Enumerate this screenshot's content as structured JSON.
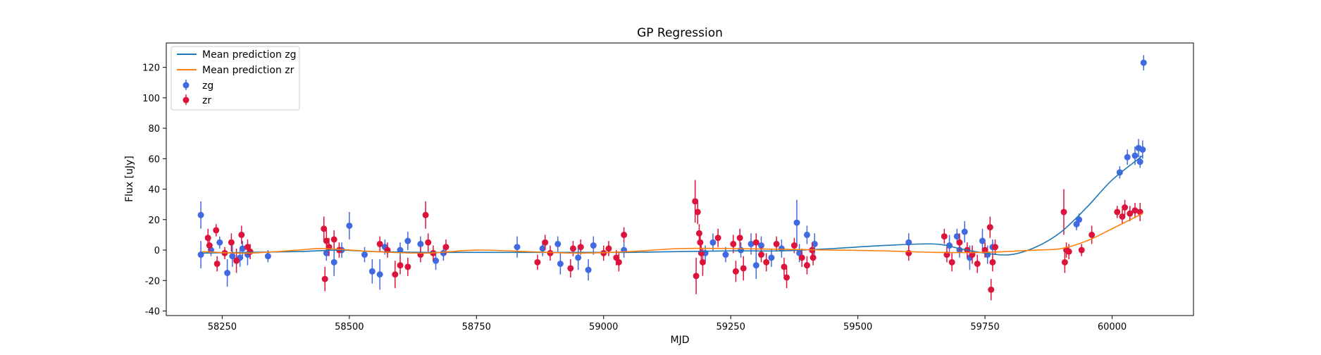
{
  "chart_data": {
    "type": "scatter",
    "title": "GP Regression",
    "xlabel": "MJD",
    "ylabel": "Flux [uJy]",
    "xlim": [
      58140,
      60160
    ],
    "ylim": [
      -43,
      136
    ],
    "xticks": [
      58250,
      58500,
      58750,
      59000,
      59250,
      59500,
      59750,
      60000
    ],
    "yticks": [
      -40,
      -20,
      0,
      20,
      40,
      60,
      80,
      100,
      120
    ],
    "grid": false,
    "legend_position": "top-left",
    "colors": {
      "zg": "#4169e1",
      "zr": "#dc143c",
      "mean_zg": "#1f77b4",
      "mean_zr": "#ff7f0e"
    },
    "series": [
      {
        "name": "Mean prediction zg",
        "kind": "line",
        "x": [
          58210,
          58300,
          58400,
          58480,
          58550,
          58650,
          58750,
          58850,
          58950,
          59050,
          59150,
          59250,
          59350,
          59450,
          59550,
          59650,
          59700,
          59750,
          59800,
          59850,
          59900,
          59950,
          60000,
          60060
        ],
        "y": [
          -2,
          -1.5,
          -1,
          0,
          -1,
          -1.5,
          -1.5,
          -1.5,
          -1.5,
          -1.5,
          -1,
          -0.5,
          -0.5,
          1,
          3,
          4,
          1,
          -2,
          -3,
          2,
          12,
          28,
          46,
          62
        ]
      },
      {
        "name": "Mean prediction zr",
        "kind": "line",
        "x": [
          58210,
          58300,
          58400,
          58450,
          58550,
          58650,
          58750,
          58850,
          58950,
          59050,
          59150,
          59250,
          59350,
          59450,
          59550,
          59650,
          59750,
          59850,
          59900,
          59950,
          60000,
          60060
        ],
        "y": [
          -1,
          -2,
          0,
          1,
          -1,
          -2,
          0,
          -1,
          -2,
          -1,
          1,
          1,
          0.5,
          0,
          -0.5,
          -1.5,
          -1.5,
          0,
          1,
          6,
          14,
          24
        ]
      },
      {
        "name": "zg",
        "kind": "errorbar",
        "points": [
          [
            58208,
            23,
            9
          ],
          [
            58208,
            -3,
            9
          ],
          [
            58228,
            0,
            4
          ],
          [
            58245,
            5,
            4
          ],
          [
            58260,
            -15,
            9
          ],
          [
            58270,
            -4,
            7
          ],
          [
            58285,
            -5,
            6
          ],
          [
            58290,
            1,
            5
          ],
          [
            58300,
            -3,
            7
          ],
          [
            58340,
            -4,
            4
          ],
          [
            58455,
            -2,
            5
          ],
          [
            58470,
            -8,
            9
          ],
          [
            58485,
            0,
            5
          ],
          [
            58500,
            16,
            9
          ],
          [
            58530,
            -3,
            5
          ],
          [
            58545,
            -14,
            8
          ],
          [
            58560,
            -16,
            10
          ],
          [
            58570,
            2,
            5
          ],
          [
            58600,
            0,
            5
          ],
          [
            58615,
            6,
            6
          ],
          [
            58640,
            4,
            5
          ],
          [
            58670,
            -7,
            6
          ],
          [
            58685,
            -2,
            5
          ],
          [
            58830,
            2,
            7
          ],
          [
            58880,
            1,
            5
          ],
          [
            58910,
            4,
            5
          ],
          [
            58915,
            -9,
            7
          ],
          [
            58950,
            -5,
            8
          ],
          [
            58970,
            -13,
            7
          ],
          [
            58980,
            3,
            6
          ],
          [
            59040,
            0,
            5
          ],
          [
            59200,
            -2,
            5
          ],
          [
            59215,
            5,
            6
          ],
          [
            59240,
            -3,
            5
          ],
          [
            59270,
            0,
            5
          ],
          [
            59290,
            4,
            7
          ],
          [
            59300,
            -10,
            9
          ],
          [
            59310,
            3,
            6
          ],
          [
            59330,
            -5,
            6
          ],
          [
            59350,
            1,
            6
          ],
          [
            59380,
            18,
            15
          ],
          [
            59385,
            -2,
            6
          ],
          [
            59400,
            10,
            6
          ],
          [
            59415,
            4,
            7
          ],
          [
            59600,
            5,
            6
          ],
          [
            59680,
            3,
            7
          ],
          [
            59695,
            9,
            5
          ],
          [
            59700,
            0,
            5
          ],
          [
            59710,
            12,
            7
          ],
          [
            59720,
            -5,
            8
          ],
          [
            59745,
            6,
            8
          ],
          [
            59755,
            -3,
            6
          ],
          [
            59765,
            2,
            5
          ],
          [
            59930,
            17,
            4
          ],
          [
            59935,
            20,
            4
          ],
          [
            60015,
            51,
            4
          ],
          [
            60030,
            61,
            5
          ],
          [
            60045,
            62,
            6
          ],
          [
            60052,
            67,
            6
          ],
          [
            60055,
            58,
            4
          ],
          [
            60060,
            66,
            6
          ],
          [
            60062,
            123,
            5
          ]
        ]
      },
      {
        "name": "zr",
        "kind": "errorbar",
        "points": [
          [
            58222,
            8,
            6
          ],
          [
            58225,
            3,
            5
          ],
          [
            58238,
            13,
            4
          ],
          [
            58240,
            -9,
            5
          ],
          [
            58255,
            -2,
            4
          ],
          [
            58268,
            5,
            6
          ],
          [
            58278,
            -7,
            8
          ],
          [
            58288,
            10,
            6
          ],
          [
            58300,
            2,
            5
          ],
          [
            58305,
            -1,
            5
          ],
          [
            58450,
            14,
            8
          ],
          [
            58452,
            -19,
            8
          ],
          [
            58455,
            6,
            7
          ],
          [
            58460,
            2,
            6
          ],
          [
            58470,
            7,
            6
          ],
          [
            58480,
            0,
            5
          ],
          [
            58560,
            4,
            5
          ],
          [
            58575,
            0,
            5
          ],
          [
            58590,
            -16,
            9
          ],
          [
            58600,
            -10,
            6
          ],
          [
            58615,
            -11,
            6
          ],
          [
            58640,
            -3,
            5
          ],
          [
            58650,
            23,
            9
          ],
          [
            58655,
            5,
            6
          ],
          [
            58665,
            -2,
            5
          ],
          [
            58690,
            2,
            5
          ],
          [
            58870,
            -8,
            5
          ],
          [
            58885,
            5,
            5
          ],
          [
            58895,
            -2,
            5
          ],
          [
            58935,
            -12,
            6
          ],
          [
            58940,
            1,
            5
          ],
          [
            58955,
            2,
            5
          ],
          [
            59000,
            -2,
            5
          ],
          [
            59010,
            1,
            5
          ],
          [
            59025,
            -5,
            5
          ],
          [
            59030,
            -8,
            6
          ],
          [
            59040,
            10,
            5
          ],
          [
            59180,
            32,
            14
          ],
          [
            59182,
            -17,
            12
          ],
          [
            59185,
            25,
            8
          ],
          [
            59188,
            11,
            6
          ],
          [
            59190,
            5,
            6
          ],
          [
            59192,
            -2,
            5
          ],
          [
            59195,
            -8,
            9
          ],
          [
            59225,
            8,
            6
          ],
          [
            59255,
            4,
            6
          ],
          [
            59260,
            -14,
            7
          ],
          [
            59268,
            8,
            6
          ],
          [
            59275,
            -12,
            8
          ],
          [
            59300,
            5,
            6
          ],
          [
            59310,
            -3,
            5
          ],
          [
            59320,
            -8,
            6
          ],
          [
            59340,
            4,
            5
          ],
          [
            59355,
            -11,
            6
          ],
          [
            59360,
            -18,
            7
          ],
          [
            59375,
            3,
            5
          ],
          [
            59390,
            -5,
            6
          ],
          [
            59400,
            -10,
            6
          ],
          [
            59410,
            0,
            5
          ],
          [
            59412,
            -5,
            5
          ],
          [
            59600,
            -2,
            5
          ],
          [
            59670,
            9,
            5
          ],
          [
            59675,
            -3,
            5
          ],
          [
            59685,
            -8,
            6
          ],
          [
            59700,
            5,
            6
          ],
          [
            59715,
            0,
            5
          ],
          [
            59725,
            -3,
            6
          ],
          [
            59735,
            -9,
            6
          ],
          [
            59750,
            0,
            5
          ],
          [
            59760,
            15,
            7
          ],
          [
            59762,
            -26,
            7
          ],
          [
            59765,
            -8,
            6
          ],
          [
            59770,
            2,
            5
          ],
          [
            59905,
            25,
            15
          ],
          [
            59907,
            -8,
            7
          ],
          [
            59910,
            0,
            5
          ],
          [
            59915,
            -1,
            5
          ],
          [
            59940,
            0,
            4
          ],
          [
            59960,
            10,
            6
          ],
          [
            60010,
            25,
            4
          ],
          [
            60020,
            22,
            5
          ],
          [
            60025,
            28,
            5
          ],
          [
            60035,
            24,
            5
          ],
          [
            60045,
            26,
            5
          ],
          [
            60055,
            25,
            6
          ]
        ]
      }
    ]
  }
}
